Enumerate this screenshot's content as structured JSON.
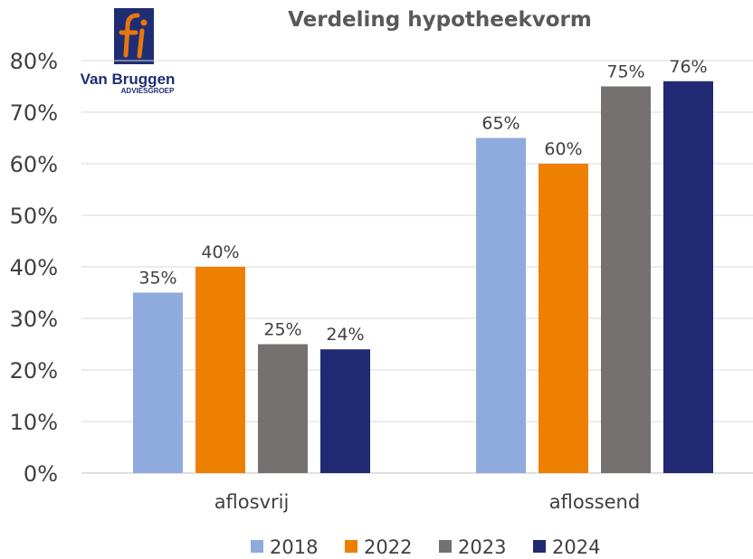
{
  "logo": {
    "name": "Van Bruggen",
    "subtitle": "ADVIESGROEP",
    "brand_colors": [
      "#1f2d73",
      "#e8760f"
    ]
  },
  "chart_data": {
    "type": "bar",
    "title": "Verdeling hypotheekvorm",
    "xlabel": "",
    "ylabel": "",
    "categories": [
      "aflosvrij",
      "aflossend"
    ],
    "series": [
      {
        "name": "2018",
        "color": "#8faadc",
        "values": [
          35,
          65
        ],
        "labels": [
          "35%",
          "65%"
        ]
      },
      {
        "name": "2022",
        "color": "#ed8000",
        "values": [
          40,
          60
        ],
        "labels": [
          "40%",
          "60%"
        ]
      },
      {
        "name": "2023",
        "color": "#767171",
        "values": [
          25,
          75
        ],
        "labels": [
          "25%",
          "75%"
        ]
      },
      {
        "name": "2024",
        "color": "#202a72",
        "values": [
          24,
          76
        ],
        "labels": [
          "24%",
          "76%"
        ]
      }
    ],
    "ylim": [
      0,
      80
    ],
    "yticks": [
      0,
      10,
      20,
      30,
      40,
      50,
      60,
      70,
      80
    ],
    "ytick_labels": [
      "0%",
      "10%",
      "20%",
      "30%",
      "40%",
      "50%",
      "60%",
      "70%",
      "80%"
    ],
    "grid": true,
    "legend_position": "bottom"
  }
}
